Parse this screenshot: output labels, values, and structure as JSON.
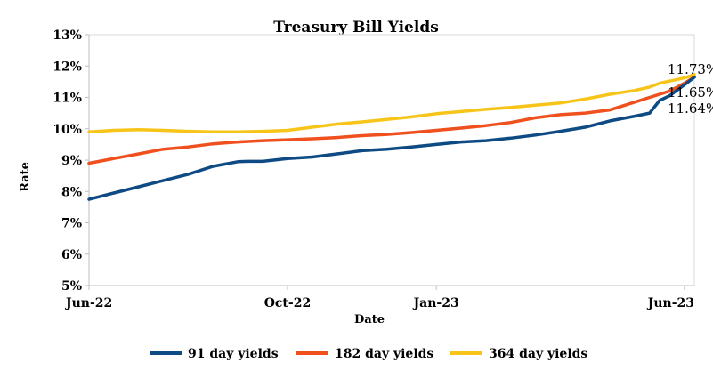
{
  "chart_data": {
    "type": "line",
    "title": "Treasury Bill Yields",
    "xlabel": "Date",
    "ylabel": "Rate",
    "ylim": [
      5,
      13
    ],
    "y_ticks": [
      "5%",
      "6%",
      "7%",
      "8%",
      "9%",
      "10%",
      "11%",
      "12%",
      "13%"
    ],
    "x_ticks": [
      "Jun-22",
      "Oct-22",
      "Jan-23",
      "Jun-23"
    ],
    "x_tick_positions_month_index": [
      0,
      4,
      7,
      12
    ],
    "xlim_month_index": [
      0,
      12.2
    ],
    "grid": "none",
    "legend_position": "bottom",
    "series": [
      {
        "name": "91 day yields",
        "color": "#0e4a84",
        "x": [
          0,
          0.5,
          1,
          1.5,
          2,
          2.5,
          3,
          3.2,
          3.5,
          4,
          4.5,
          5,
          5.5,
          6,
          6.5,
          7,
          7.5,
          8,
          8.5,
          9,
          9.5,
          10,
          10.5,
          11,
          11.3,
          11.5,
          11.7,
          12,
          12.2
        ],
        "y": [
          7.75,
          7.95,
          8.15,
          8.35,
          8.55,
          8.8,
          8.95,
          8.96,
          8.96,
          9.05,
          9.1,
          9.2,
          9.3,
          9.35,
          9.42,
          9.5,
          9.58,
          9.62,
          9.7,
          9.8,
          9.92,
          10.05,
          10.25,
          10.4,
          10.5,
          10.9,
          11.05,
          11.4,
          11.64
        ]
      },
      {
        "name": "182 day yields",
        "color": "#f0501e",
        "x": [
          0,
          0.5,
          1,
          1.5,
          2,
          2.5,
          3,
          3.5,
          4,
          4.5,
          5,
          5.5,
          6,
          6.5,
          7,
          7.5,
          8,
          8.5,
          9,
          9.5,
          10,
          10.5,
          11,
          11.3,
          11.5,
          11.7,
          12,
          12.2
        ],
        "y": [
          8.9,
          9.05,
          9.2,
          9.35,
          9.42,
          9.52,
          9.58,
          9.62,
          9.65,
          9.68,
          9.72,
          9.78,
          9.82,
          9.88,
          9.95,
          10.02,
          10.1,
          10.2,
          10.35,
          10.45,
          10.5,
          10.6,
          10.85,
          11.0,
          11.1,
          11.2,
          11.45,
          11.65
        ]
      },
      {
        "name": "364 day yields",
        "color": "#f7c51a",
        "x": [
          0,
          0.5,
          1,
          1.5,
          2,
          2.5,
          3,
          3.5,
          4,
          4.5,
          5,
          5.5,
          6,
          6.5,
          7,
          7.5,
          8,
          8.5,
          9,
          9.5,
          10,
          10.5,
          11,
          11.3,
          11.5,
          11.7,
          12,
          12.2
        ],
        "y": [
          9.9,
          9.95,
          9.97,
          9.95,
          9.92,
          9.9,
          9.9,
          9.92,
          9.95,
          10.05,
          10.15,
          10.22,
          10.3,
          10.38,
          10.48,
          10.55,
          10.62,
          10.68,
          10.75,
          10.82,
          10.95,
          11.1,
          11.22,
          11.33,
          11.45,
          11.52,
          11.62,
          11.73
        ]
      }
    ],
    "annotations": [
      "11.73%",
      "11.65%",
      "11.64%"
    ]
  }
}
